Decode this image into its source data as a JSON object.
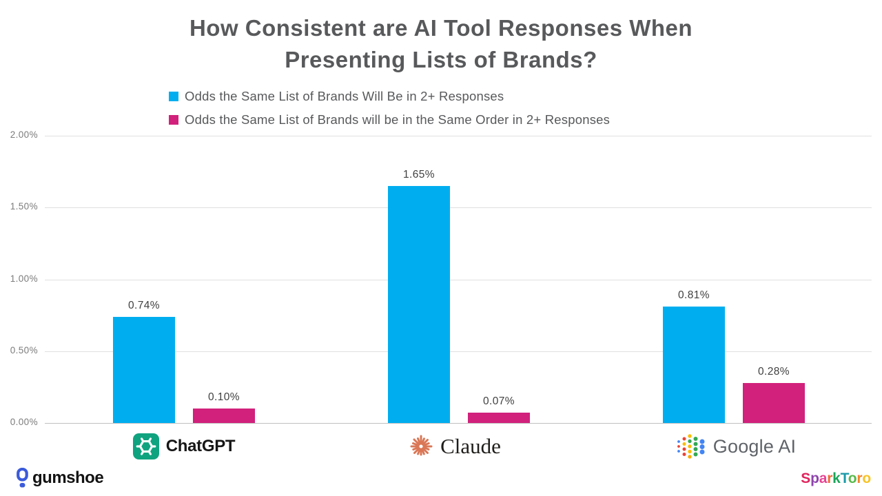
{
  "title": {
    "line1": "How Consistent are AI Tool Responses When",
    "line2": "Presenting Lists of Brands?"
  },
  "chart_data": {
    "type": "bar",
    "title": "How Consistent are AI Tool Responses When Presenting Lists of Brands?",
    "categories": [
      "ChatGPT",
      "Claude",
      "Google AI"
    ],
    "series": [
      {
        "name": "Odds the Same List of Brands Will Be in 2+ Responses",
        "color": "#00AEEF",
        "values": [
          0.74,
          1.65,
          0.81
        ],
        "labels": [
          "0.74%",
          "1.65%",
          "0.81%"
        ]
      },
      {
        "name": "Odds the Same List of Brands will be in the Same Order in 2+ Responses",
        "color": "#D1217C",
        "values": [
          0.1,
          0.07,
          0.28
        ],
        "labels": [
          "0.10%",
          "0.07%",
          "0.28%"
        ]
      }
    ],
    "ylim": [
      0,
      2.0
    ],
    "yticks": [
      {
        "value": 0.0,
        "label": "0.00%"
      },
      {
        "value": 0.5,
        "label": "0.50%"
      },
      {
        "value": 1.0,
        "label": "1.00%"
      },
      {
        "value": 1.5,
        "label": "1.50%"
      },
      {
        "value": 2.0,
        "label": "2.00%"
      }
    ],
    "grid": true,
    "legend_position": "top"
  },
  "brands": [
    {
      "label": "ChatGPT"
    },
    {
      "label": "Claude"
    },
    {
      "label": "Google AI"
    }
  ],
  "footer": {
    "left_logo_text": "gumshoe",
    "right_logo_text": "SparkToro",
    "sparktoro_letters": [
      {
        "ch": "S",
        "color": "#E0245E"
      },
      {
        "ch": "p",
        "color": "#8E44AD"
      },
      {
        "ch": "a",
        "color": "#E84393"
      },
      {
        "ch": "r",
        "color": "#F06A35"
      },
      {
        "ch": "k",
        "color": "#18A558"
      },
      {
        "ch": "T",
        "color": "#1B9AAA"
      },
      {
        "ch": "o",
        "color": "#56B949"
      },
      {
        "ch": "r",
        "color": "#F5822A"
      },
      {
        "ch": "o",
        "color": "#F7C325"
      }
    ]
  },
  "colors": {
    "title_text": "#58595B",
    "legend_text": "#58595B",
    "axis_text": "#7B7B7B",
    "series1_blue": "#00AEEF",
    "series2_magenta": "#D1217C",
    "openai_green": "#10A37F",
    "claude_coral": "#DA7756",
    "gumshoe_blue": "#3B5BDB"
  }
}
